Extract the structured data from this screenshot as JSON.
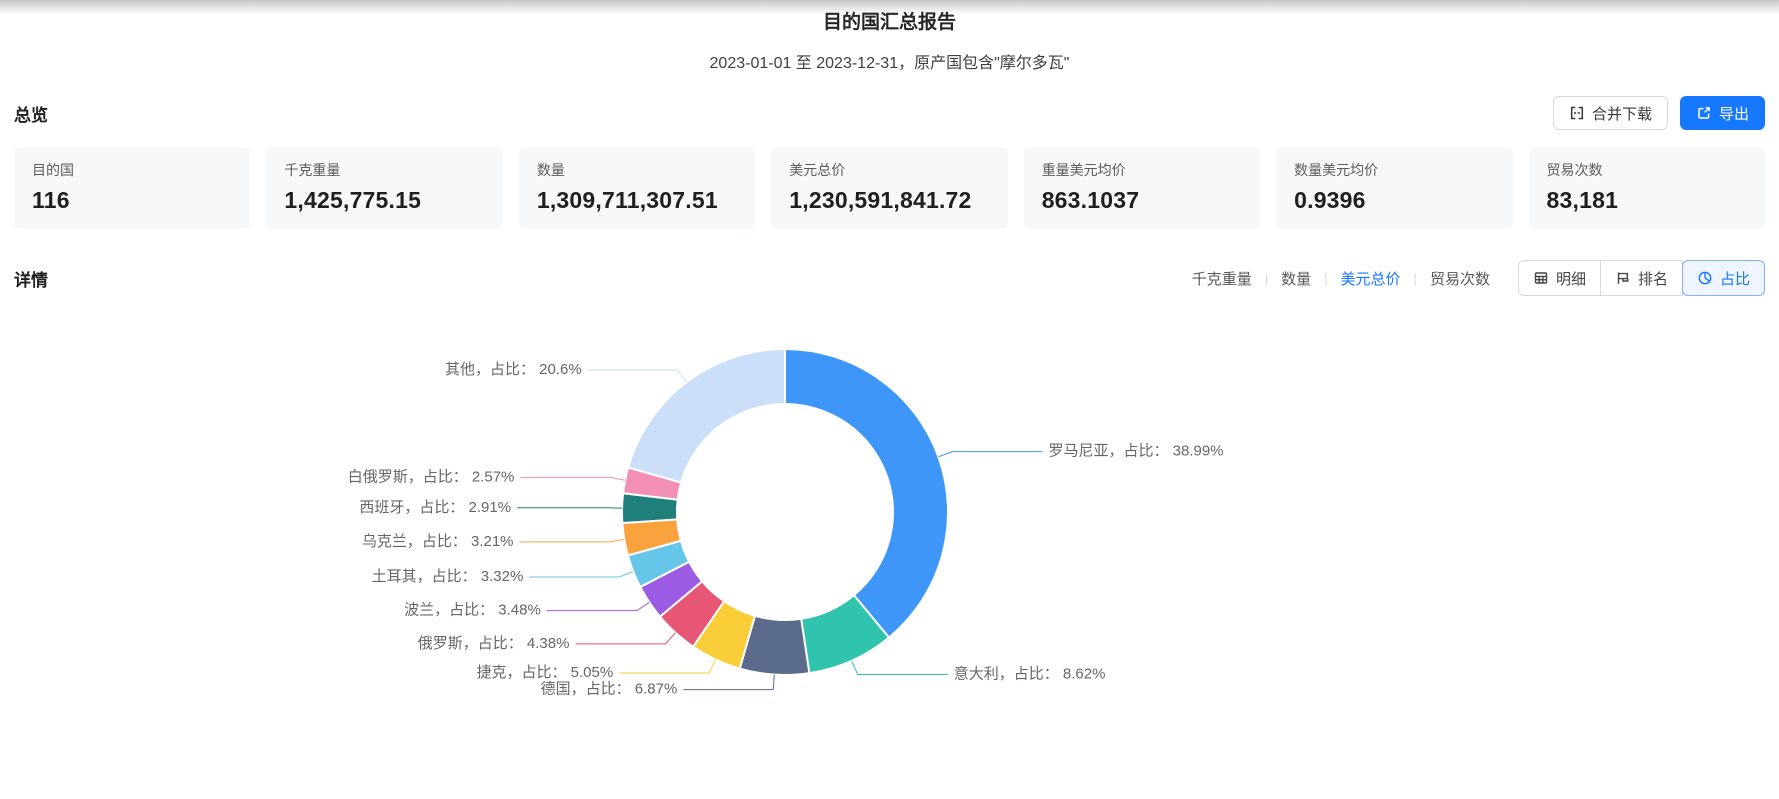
{
  "page": {
    "title": "目的国汇总报告",
    "subtitle": "2023-01-01 至 2023-12-31，原产国包含\"摩尔多瓦\""
  },
  "colors": {
    "accent": "#1677ff",
    "card_bg": "#f7f8fa",
    "label_text": "#666666"
  },
  "overview": {
    "heading": "总览",
    "merge_download_label": "合并下载",
    "export_label": "导出",
    "cards": [
      {
        "key": "destination-count",
        "label": "目的国",
        "value": "116"
      },
      {
        "key": "kg-weight",
        "label": "千克重量",
        "value": "1,425,775.15"
      },
      {
        "key": "quantity",
        "label": "数量",
        "value": "1,309,711,307.51"
      },
      {
        "key": "usd-total",
        "label": "美元总价",
        "value": "1,230,591,841.72"
      },
      {
        "key": "usd-per-weight",
        "label": "重量美元均价",
        "value": "863.1037"
      },
      {
        "key": "usd-per-quantity",
        "label": "数量美元均价",
        "value": "0.9396"
      },
      {
        "key": "trade-count",
        "label": "贸易次数",
        "value": "83,181"
      }
    ]
  },
  "detail": {
    "heading": "详情",
    "metric_tabs": [
      {
        "key": "kg-weight",
        "label": "千克重量",
        "active": false
      },
      {
        "key": "quantity",
        "label": "数量",
        "active": false
      },
      {
        "key": "usd-total",
        "label": "美元总价",
        "active": true
      },
      {
        "key": "trade-count",
        "label": "贸易次数",
        "active": false
      }
    ],
    "view_buttons": [
      {
        "key": "detail-table",
        "label": "明细",
        "icon": "table-icon",
        "active": false
      },
      {
        "key": "ranking",
        "label": "排名",
        "icon": "ranking-icon",
        "active": false
      },
      {
        "key": "proportion",
        "label": "占比",
        "icon": "pie-icon",
        "active": true
      }
    ]
  },
  "chart_data": {
    "type": "pie",
    "title": "美元总价占比 (donut)",
    "label_word": "占比",
    "inner_radius_ratio": 0.66,
    "legend_position": "none",
    "series": [
      {
        "key": "romania",
        "name": "罗马尼亚",
        "percent": 38.99,
        "color": "#3D96F8"
      },
      {
        "key": "italy",
        "name": "意大利",
        "percent": 8.62,
        "color": "#30C4AF"
      },
      {
        "key": "germany",
        "name": "德国",
        "percent": 6.87,
        "color": "#5A6B8C"
      },
      {
        "key": "czech",
        "name": "捷克",
        "percent": 5.05,
        "color": "#F9CE39"
      },
      {
        "key": "russia",
        "name": "俄罗斯",
        "percent": 4.38,
        "color": "#E75674"
      },
      {
        "key": "poland",
        "name": "波兰",
        "percent": 3.48,
        "color": "#9C5BE3"
      },
      {
        "key": "turkey",
        "name": "土耳其",
        "percent": 3.32,
        "color": "#66C6EA"
      },
      {
        "key": "ukraine",
        "name": "乌克兰",
        "percent": 3.21,
        "color": "#F9A23E"
      },
      {
        "key": "spain",
        "name": "西班牙",
        "percent": 2.91,
        "color": "#1F807B"
      },
      {
        "key": "belarus",
        "name": "白俄罗斯",
        "percent": 2.57,
        "color": "#F48FB6"
      },
      {
        "key": "other",
        "name": "其他",
        "percent": 20.6,
        "color": "#CBDFF9"
      }
    ]
  }
}
